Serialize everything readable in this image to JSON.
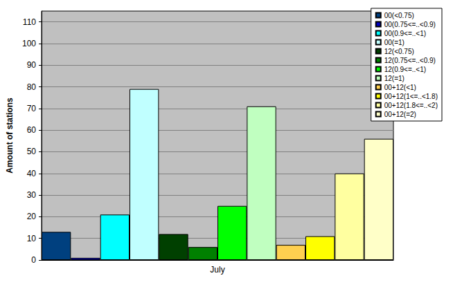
{
  "chart_data": {
    "type": "bar",
    "y_label": "Amount of stations",
    "categories": [
      "July"
    ],
    "series": [
      {
        "name": "00(<0.75)",
        "color": "#00407f",
        "values": [
          13
        ]
      },
      {
        "name": "00(0.75<=..<0.9)",
        "color": "#0000c0",
        "values": [
          1
        ]
      },
      {
        "name": "00(0.9<=..<1)",
        "color": "#00ffff",
        "values": [
          21
        ]
      },
      {
        "name": "00(=1)",
        "color": "#c0ffff",
        "values": [
          79
        ]
      },
      {
        "name": "12(<0.75)",
        "color": "#004000",
        "values": [
          12
        ]
      },
      {
        "name": "12(0.75<=..<0.9)",
        "color": "#008000",
        "values": [
          6
        ]
      },
      {
        "name": "12(0.9<=..<1)",
        "color": "#00ff00",
        "values": [
          25
        ]
      },
      {
        "name": "12(=1)",
        "color": "#c0ffc0",
        "values": [
          71
        ]
      },
      {
        "name": "00+12(<1)",
        "color": "#ffd050",
        "values": [
          7
        ]
      },
      {
        "name": "00+12(1<=..<1.8)",
        "color": "#ffff00",
        "values": [
          11
        ]
      },
      {
        "name": "00+12(1.8<=..<2)",
        "color": "#ffffa0",
        "values": [
          40
        ]
      },
      {
        "name": "00+12(=2)",
        "color": "#ffffc8",
        "values": [
          56
        ]
      }
    ],
    "ylim": [
      0,
      115
    ],
    "yticks": [
      0,
      10,
      20,
      30,
      40,
      50,
      60,
      70,
      80,
      90,
      100,
      110
    ],
    "grid": true,
    "legend": "top-right"
  }
}
